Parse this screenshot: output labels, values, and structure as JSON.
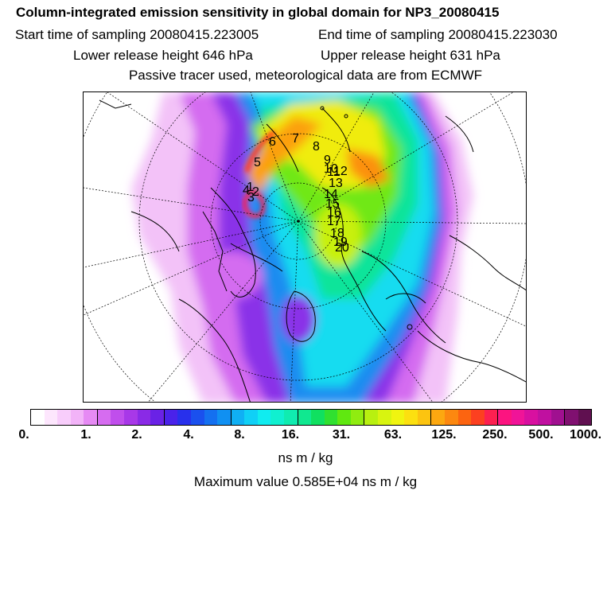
{
  "header": {
    "title": "Column-integrated emission sensitivity in global domain for NP3_20080415",
    "start_time": "Start time of sampling 20080415.223005",
    "end_time": "End time of sampling 20080415.223030",
    "lower_height": "Lower release height  646 hPa",
    "upper_height": "Upper release height  631 hPa",
    "tracer_note": "Passive tracer used, meteorological data are from ECMWF"
  },
  "map": {
    "point_labels": [
      "1",
      "2",
      "3",
      "4",
      "5",
      "6",
      "7",
      "8",
      "9",
      "10",
      "11",
      "12",
      "13",
      "14",
      "15",
      "16",
      "17",
      "18",
      "19",
      "20"
    ]
  },
  "legend": {
    "tick_labels": [
      "0.",
      "1.",
      "2.",
      "4.",
      "8.",
      "16.",
      "31.",
      "63.",
      "125.",
      "250.",
      "500.",
      "1000."
    ],
    "colors": [
      "#ffffff",
      "#fde6fd",
      "#f8cdfb",
      "#f2b3f8",
      "#e68af4",
      "#d66cf0",
      "#c04eec",
      "#a838e8",
      "#8a2ae6",
      "#6a22e6",
      "#4a22ea",
      "#2830ec",
      "#1a50ee",
      "#1470f0",
      "#1090f2",
      "#10b0f4",
      "#10d0f6",
      "#10ecf0",
      "#10f0d0",
      "#10ecb0",
      "#10e890",
      "#10e060",
      "#30e030",
      "#60e810",
      "#90ec10",
      "#b8f010",
      "#d8f410",
      "#f0f410",
      "#fce010",
      "#fcc410",
      "#fca810",
      "#fc8810",
      "#fc6410",
      "#fc4020",
      "#fc2050",
      "#fc1480",
      "#f01498",
      "#d810a0",
      "#c010a0",
      "#a01090",
      "#801070",
      "#601050"
    ],
    "units": "ns m / kg",
    "max_value": "Maximum value  0.585E+04 ns m / kg"
  }
}
